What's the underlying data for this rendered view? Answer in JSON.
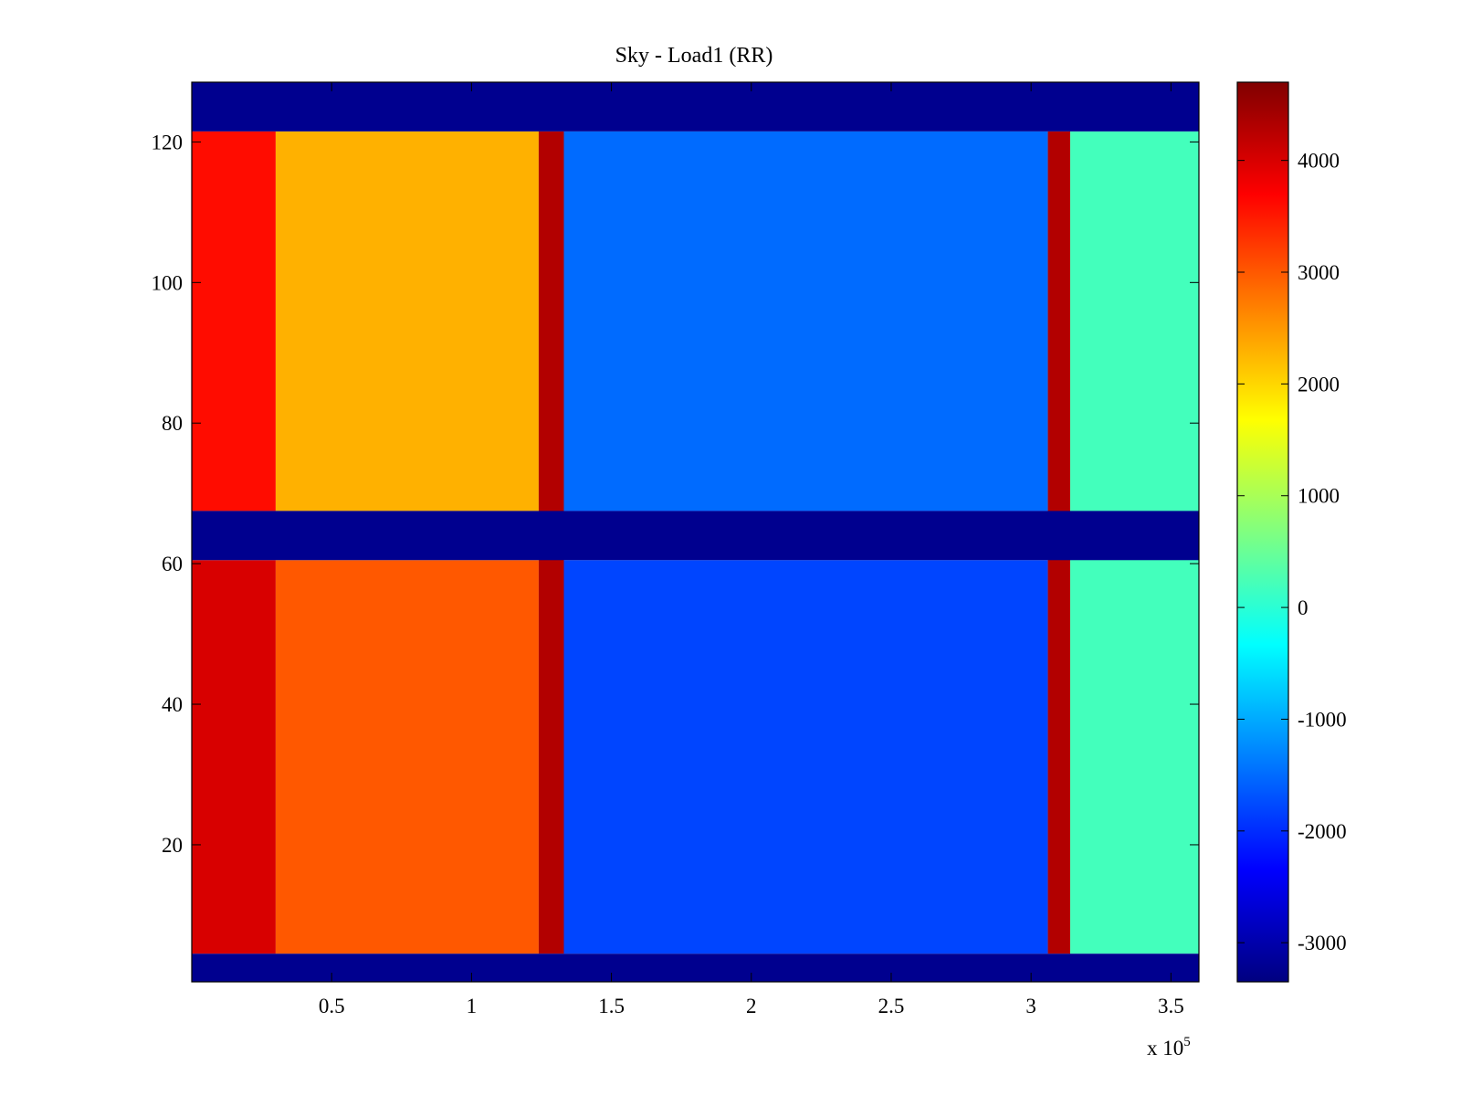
{
  "chart_data": {
    "type": "heatmap",
    "title": "Sky - Load1 (RR)",
    "xlabel": "",
    "ylabel": "",
    "x_multiplier_label": "x 10",
    "x_multiplier_exponent": "5",
    "xlim": [
      0,
      3.6
    ],
    "ylim": [
      1,
      128
    ],
    "x_ticks": [
      0.5,
      1,
      1.5,
      2,
      2.5,
      3,
      3.5
    ],
    "x_tick_labels": [
      "0.5",
      "1",
      "1.5",
      "2",
      "2.5",
      "3",
      "3.5"
    ],
    "y_ticks": [
      20,
      40,
      60,
      80,
      100,
      120
    ],
    "y_tick_labels": [
      "20",
      "40",
      "60",
      "80",
      "100",
      "120"
    ],
    "colorbar": {
      "colormap": "jet",
      "range": [
        -3350,
        4700
      ],
      "ticks": [
        -3000,
        -2000,
        -1000,
        0,
        1000,
        2000,
        3000,
        4000
      ],
      "tick_labels": [
        "-3000",
        "-2000",
        "-1000",
        "0",
        "1000",
        "2000",
        "3000",
        "4000"
      ]
    },
    "masked_rows": [
      [
        1,
        4
      ],
      [
        61,
        67
      ],
      [
        122,
        128
      ]
    ],
    "regions": [
      {
        "x_start": 0,
        "x_end": 0.3,
        "rows": [
          5,
          60
        ],
        "value": 4000
      },
      {
        "x_start": 0,
        "x_end": 0.3,
        "rows": [
          68,
          121
        ],
        "value": 3600
      },
      {
        "x_start": 0.3,
        "x_end": 1.24,
        "rows": [
          5,
          60
        ],
        "value": 3000
      },
      {
        "x_start": 0.3,
        "x_end": 1.24,
        "rows": [
          68,
          121
        ],
        "value": 2300
      },
      {
        "x_start": 1.24,
        "x_end": 1.33,
        "rows": [
          5,
          121
        ],
        "value": 4300
      },
      {
        "x_start": 1.33,
        "x_end": 3.06,
        "rows": [
          5,
          60
        ],
        "value": -1800
      },
      {
        "x_start": 1.33,
        "x_end": 3.06,
        "rows": [
          68,
          121
        ],
        "value": -1500
      },
      {
        "x_start": 3.06,
        "x_end": 3.14,
        "rows": [
          5,
          121
        ],
        "value": 4300
      },
      {
        "x_start": 3.14,
        "x_end": 3.6,
        "rows": [
          5,
          121
        ],
        "value": 200
      }
    ],
    "colors": {
      "masked": "#00008F",
      "axes": "#000000",
      "background": "#ffffff"
    }
  }
}
